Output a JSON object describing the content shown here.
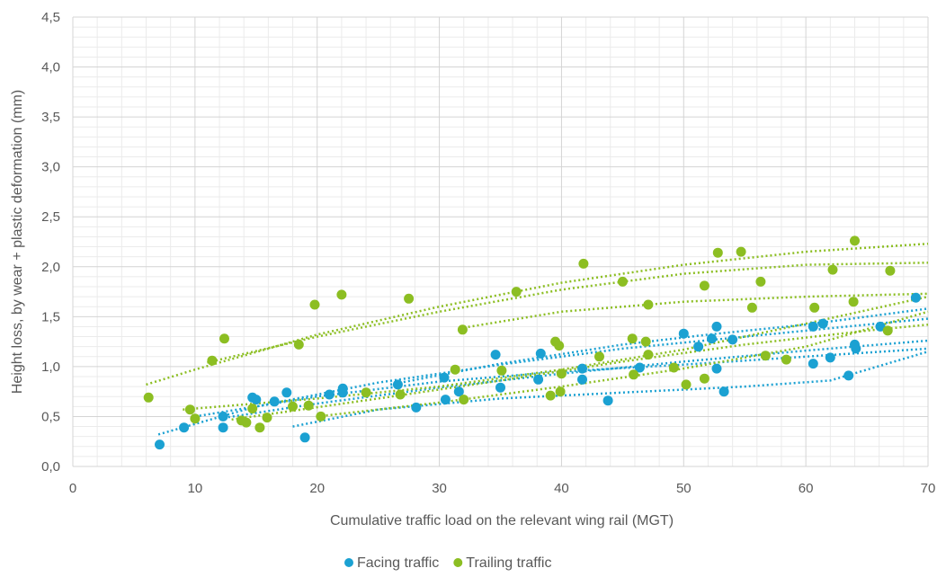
{
  "chart_data": {
    "type": "scatter",
    "title": "",
    "xlabel": "Cumulative traffic load on the relevant wing rail (MGT)",
    "ylabel": "Height loss, by wear + plastic deformation (mm)",
    "xlim": [
      0,
      70
    ],
    "ylim": [
      0,
      4.5
    ],
    "x_ticks": [
      "0",
      "10",
      "20",
      "30",
      "40",
      "50",
      "60",
      "70"
    ],
    "y_ticks": [
      "0,0",
      "0,5",
      "1,0",
      "1,5",
      "2,0",
      "2,5",
      "3,0",
      "3,5",
      "4,0",
      "4,5"
    ],
    "grid": true,
    "legend_position": "bottom",
    "series": [
      {
        "name": "Facing traffic",
        "color": "#1ba1d2",
        "points": [
          [
            7.1,
            0.22
          ],
          [
            9.1,
            0.39
          ],
          [
            12.3,
            0.5
          ],
          [
            12.3,
            0.39
          ],
          [
            14.7,
            0.69
          ],
          [
            15.0,
            0.67
          ],
          [
            16.5,
            0.65
          ],
          [
            17.5,
            0.74
          ],
          [
            19.0,
            0.29
          ],
          [
            21.0,
            0.72
          ],
          [
            22.1,
            0.78
          ],
          [
            22.1,
            0.74
          ],
          [
            26.6,
            0.82
          ],
          [
            28.1,
            0.59
          ],
          [
            30.4,
            0.89
          ],
          [
            30.5,
            0.67
          ],
          [
            31.6,
            0.75
          ],
          [
            34.6,
            1.12
          ],
          [
            35.0,
            0.79
          ],
          [
            38.1,
            0.87
          ],
          [
            38.3,
            1.13
          ],
          [
            41.7,
            0.98
          ],
          [
            41.7,
            0.87
          ],
          [
            43.8,
            0.66
          ],
          [
            46.4,
            0.99
          ],
          [
            50.0,
            1.33
          ],
          [
            51.2,
            1.2
          ],
          [
            52.3,
            1.28
          ],
          [
            52.7,
            1.4
          ],
          [
            52.7,
            0.98
          ],
          [
            53.3,
            0.75
          ],
          [
            54.0,
            1.27
          ],
          [
            60.6,
            1.4
          ],
          [
            60.6,
            1.03
          ],
          [
            61.4,
            1.43
          ],
          [
            62.0,
            1.09
          ],
          [
            63.5,
            0.91
          ],
          [
            64.0,
            1.22
          ],
          [
            64.1,
            1.18
          ],
          [
            66.1,
            1.4
          ],
          [
            69.0,
            1.69
          ]
        ],
        "trendlines": [
          [
            [
              7.0,
              0.32
            ],
            [
              15.0,
              0.6
            ],
            [
              25.0,
              0.84
            ],
            [
              35.0,
              1.02
            ],
            [
              45.0,
              1.18
            ],
            [
              55.0,
              1.3
            ],
            [
              65.0,
              1.42
            ],
            [
              70.0,
              1.48
            ]
          ],
          [
            [
              12.0,
              0.48
            ],
            [
              20.0,
              0.63
            ],
            [
              30.0,
              0.79
            ],
            [
              40.0,
              0.93
            ],
            [
              50.0,
              1.05
            ],
            [
              60.0,
              1.16
            ],
            [
              70.0,
              1.26
            ]
          ],
          [
            [
              18.0,
              0.4
            ],
            [
              25.0,
              0.57
            ],
            [
              35.0,
              0.68
            ],
            [
              45.0,
              0.74
            ],
            [
              55.0,
              0.8
            ],
            [
              62.0,
              0.86
            ],
            [
              70.0,
              1.15
            ]
          ],
          [
            [
              10.0,
              0.5
            ],
            [
              20.0,
              0.7
            ],
            [
              30.0,
              0.85
            ],
            [
              40.0,
              0.95
            ],
            [
              50.0,
              1.02
            ],
            [
              60.0,
              1.1
            ],
            [
              70.0,
              1.18
            ]
          ],
          [
            [
              26.0,
              0.82
            ],
            [
              35.0,
              1.03
            ],
            [
              45.0,
              1.22
            ],
            [
              52.0,
              1.32
            ],
            [
              60.0,
              1.42
            ],
            [
              70.0,
              1.58
            ]
          ]
        ]
      },
      {
        "name": "Trailing traffic",
        "color": "#8cbe22",
        "points": [
          [
            6.2,
            0.69
          ],
          [
            9.6,
            0.57
          ],
          [
            10.0,
            0.48
          ],
          [
            11.4,
            1.06
          ],
          [
            12.4,
            1.28
          ],
          [
            13.8,
            0.46
          ],
          [
            14.2,
            0.44
          ],
          [
            14.7,
            0.58
          ],
          [
            15.3,
            0.39
          ],
          [
            15.9,
            0.49
          ],
          [
            18.0,
            0.6
          ],
          [
            18.5,
            1.22
          ],
          [
            19.3,
            0.61
          ],
          [
            19.8,
            1.62
          ],
          [
            20.3,
            0.5
          ],
          [
            22.0,
            1.72
          ],
          [
            24.0,
            0.74
          ],
          [
            26.8,
            0.72
          ],
          [
            27.5,
            1.68
          ],
          [
            31.3,
            0.97
          ],
          [
            31.9,
            1.37
          ],
          [
            32.0,
            0.67
          ],
          [
            35.1,
            0.96
          ],
          [
            36.3,
            1.75
          ],
          [
            39.1,
            0.71
          ],
          [
            39.5,
            1.25
          ],
          [
            39.8,
            1.21
          ],
          [
            39.9,
            0.75
          ],
          [
            40.0,
            0.93
          ],
          [
            41.8,
            2.03
          ],
          [
            43.1,
            1.1
          ],
          [
            45.0,
            1.85
          ],
          [
            45.8,
            1.28
          ],
          [
            45.9,
            0.92
          ],
          [
            46.9,
            1.25
          ],
          [
            47.1,
            1.62
          ],
          [
            47.1,
            1.12
          ],
          [
            49.2,
            0.99
          ],
          [
            50.2,
            0.82
          ],
          [
            51.7,
            0.88
          ],
          [
            51.7,
            1.81
          ],
          [
            52.8,
            2.14
          ],
          [
            54.7,
            2.15
          ],
          [
            55.6,
            1.59
          ],
          [
            56.3,
            1.85
          ],
          [
            56.7,
            1.11
          ],
          [
            58.4,
            1.07
          ],
          [
            60.7,
            1.59
          ],
          [
            62.2,
            1.97
          ],
          [
            63.9,
            1.65
          ],
          [
            64.0,
            2.26
          ],
          [
            66.7,
            1.36
          ],
          [
            66.9,
            1.96
          ]
        ],
        "trendlines": [
          [
            [
              6.0,
              0.82
            ],
            [
              10.0,
              0.97
            ],
            [
              20.0,
              1.32
            ],
            [
              30.0,
              1.6
            ],
            [
              40.0,
              1.84
            ],
            [
              50.0,
              2.02
            ],
            [
              60.0,
              2.15
            ],
            [
              70.0,
              2.23
            ]
          ],
          [
            [
              11.0,
              1.04
            ],
            [
              20.0,
              1.3
            ],
            [
              30.0,
              1.55
            ],
            [
              40.0,
              1.77
            ],
            [
              50.0,
              1.93
            ],
            [
              60.0,
              2.02
            ],
            [
              70.0,
              2.04
            ]
          ],
          [
            [
              32.0,
              1.39
            ],
            [
              40.0,
              1.55
            ],
            [
              50.0,
              1.65
            ],
            [
              60.0,
              1.7
            ],
            [
              70.0,
              1.73
            ]
          ],
          [
            [
              20.0,
              0.5
            ],
            [
              30.0,
              0.64
            ],
            [
              40.0,
              0.8
            ],
            [
              50.0,
              0.98
            ],
            [
              60.0,
              1.2
            ],
            [
              70.0,
              1.55
            ]
          ],
          [
            [
              13.0,
              0.47
            ],
            [
              25.0,
              0.68
            ],
            [
              35.0,
              0.86
            ],
            [
              45.0,
              1.05
            ],
            [
              55.0,
              1.22
            ],
            [
              65.0,
              1.36
            ],
            [
              70.0,
              1.42
            ]
          ],
          [
            [
              9.0,
              0.57
            ],
            [
              20.0,
              0.68
            ],
            [
              30.0,
              0.8
            ],
            [
              40.0,
              0.97
            ],
            [
              50.0,
              1.17
            ],
            [
              60.0,
              1.43
            ],
            [
              70.0,
              1.7
            ]
          ]
        ]
      }
    ]
  }
}
